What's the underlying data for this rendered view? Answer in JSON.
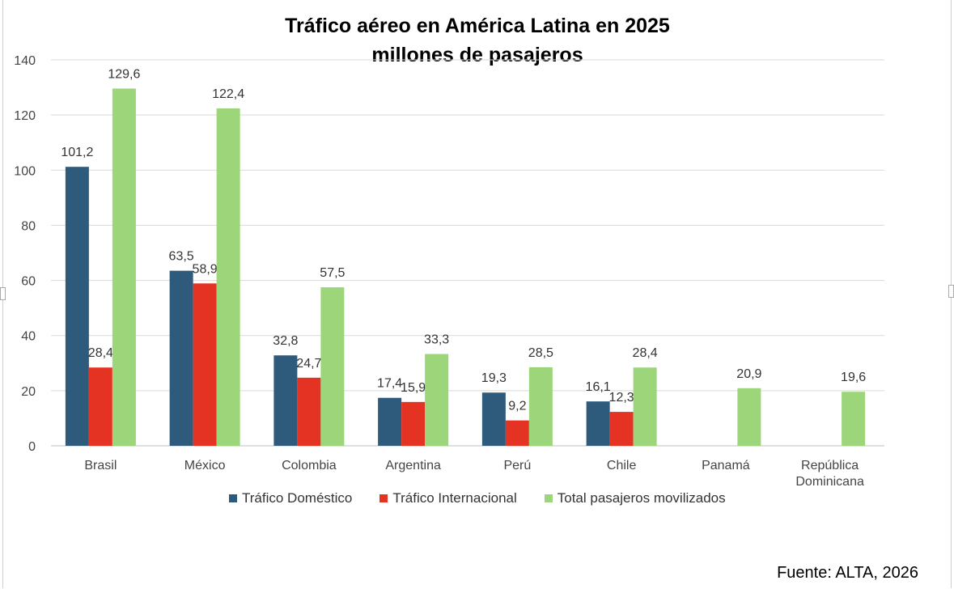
{
  "chart_data": {
    "type": "bar",
    "title": "Tráfico aéreo en América Latina en 2025",
    "subtitle": "millones de pasajeros",
    "categories": [
      "Brasil",
      "México",
      "Colombia",
      "Argentina",
      "Perú",
      "Chile",
      "Panamá",
      "República Dominicana"
    ],
    "category_lines": [
      [
        "Brasil"
      ],
      [
        "México"
      ],
      [
        "Colombia"
      ],
      [
        "Argentina"
      ],
      [
        "Perú"
      ],
      [
        "Chile"
      ],
      [
        "Panamá"
      ],
      [
        "República",
        "Dominicana"
      ]
    ],
    "series": [
      {
        "name": "Tráfico Doméstico",
        "color": "#2e5a7c",
        "values": [
          101.2,
          63.5,
          32.8,
          17.4,
          19.3,
          16.1,
          null,
          null
        ],
        "labels": [
          "101,2",
          "63,5",
          "32,8",
          "17,4",
          "19,3",
          "16,1",
          null,
          null
        ]
      },
      {
        "name": "Tráfico Internacional",
        "color": "#e53323",
        "values": [
          28.4,
          58.9,
          24.7,
          15.9,
          9.2,
          12.3,
          null,
          null
        ],
        "labels": [
          "28,4",
          "58,9",
          "24,7",
          "15,9",
          "9,2",
          "12,3",
          null,
          null
        ]
      },
      {
        "name": "Total pasajeros movilizados",
        "color": "#9dd57b",
        "values": [
          129.6,
          122.4,
          57.5,
          33.3,
          28.5,
          28.4,
          20.9,
          19.6
        ],
        "labels": [
          "129,6",
          "122,4",
          "57,5",
          "33,3",
          "28,5",
          "28,4",
          "20,9",
          "19,6"
        ]
      }
    ],
    "ylim": [
      0,
      140
    ],
    "yticks": [
      0,
      20,
      40,
      60,
      80,
      100,
      120,
      140
    ],
    "xlabel": "",
    "ylabel": "",
    "grid": true,
    "legend_position": "bottom"
  },
  "source": "Fuente: ALTA, 2026"
}
